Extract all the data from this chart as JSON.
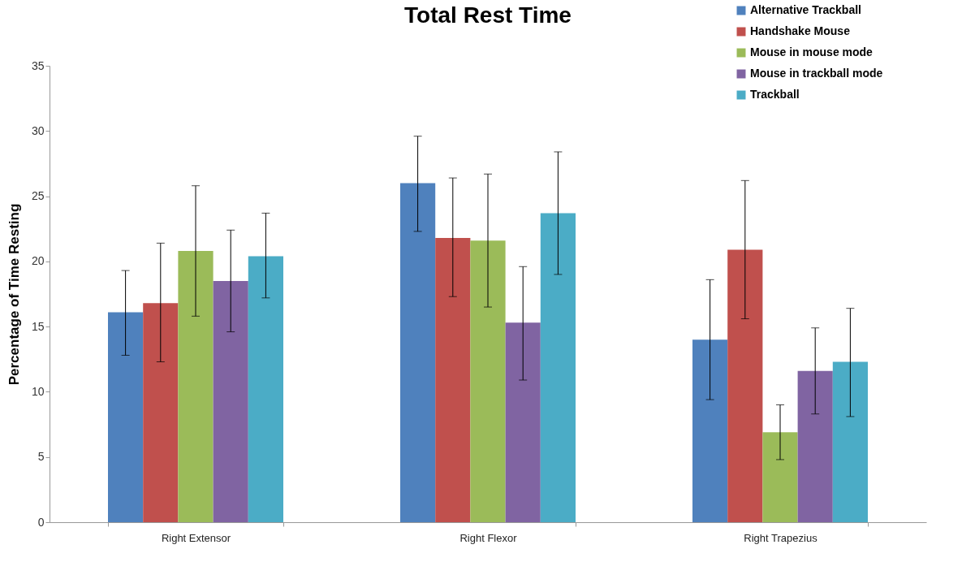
{
  "chart_data": {
    "type": "bar",
    "title": "Total Rest Time",
    "ylabel": "Percentage of Time Resting",
    "categories": [
      "Right Extensor",
      "Right Flexor",
      "Right Trapezius"
    ],
    "series": [
      {
        "name": "Alternative Trackball",
        "color": "#4f81bd",
        "values": [
          16.1,
          26.0,
          14.0
        ],
        "errors": [
          [
            12.8,
            19.3
          ],
          [
            22.3,
            29.6
          ],
          [
            9.4,
            18.6
          ]
        ]
      },
      {
        "name": "Handshake Mouse",
        "color": "#c0504d",
        "values": [
          16.8,
          21.8,
          20.9
        ],
        "errors": [
          [
            12.3,
            21.4
          ],
          [
            17.3,
            26.4
          ],
          [
            15.6,
            26.2
          ]
        ]
      },
      {
        "name": "Mouse in mouse mode",
        "color": "#9bbb59",
        "values": [
          20.8,
          21.6,
          6.9
        ],
        "errors": [
          [
            15.8,
            25.8
          ],
          [
            16.5,
            26.7
          ],
          [
            4.8,
            9.0
          ]
        ]
      },
      {
        "name": "Mouse in trackball mode",
        "color": "#8064a2",
        "values": [
          18.5,
          15.3,
          11.6
        ],
        "errors": [
          [
            14.6,
            22.4
          ],
          [
            10.9,
            19.6
          ],
          [
            8.3,
            14.9
          ]
        ]
      },
      {
        "name": "Trackball",
        "color": "#4bacc6",
        "values": [
          20.4,
          23.7,
          12.3
        ],
        "errors": [
          [
            17.2,
            23.7
          ],
          [
            19.0,
            28.4
          ],
          [
            8.1,
            16.4
          ]
        ]
      }
    ],
    "ylim": [
      0,
      35
    ],
    "yticks": [
      0,
      5,
      10,
      15,
      20,
      25,
      30,
      35
    ],
    "grid": false,
    "legend": "top right"
  }
}
